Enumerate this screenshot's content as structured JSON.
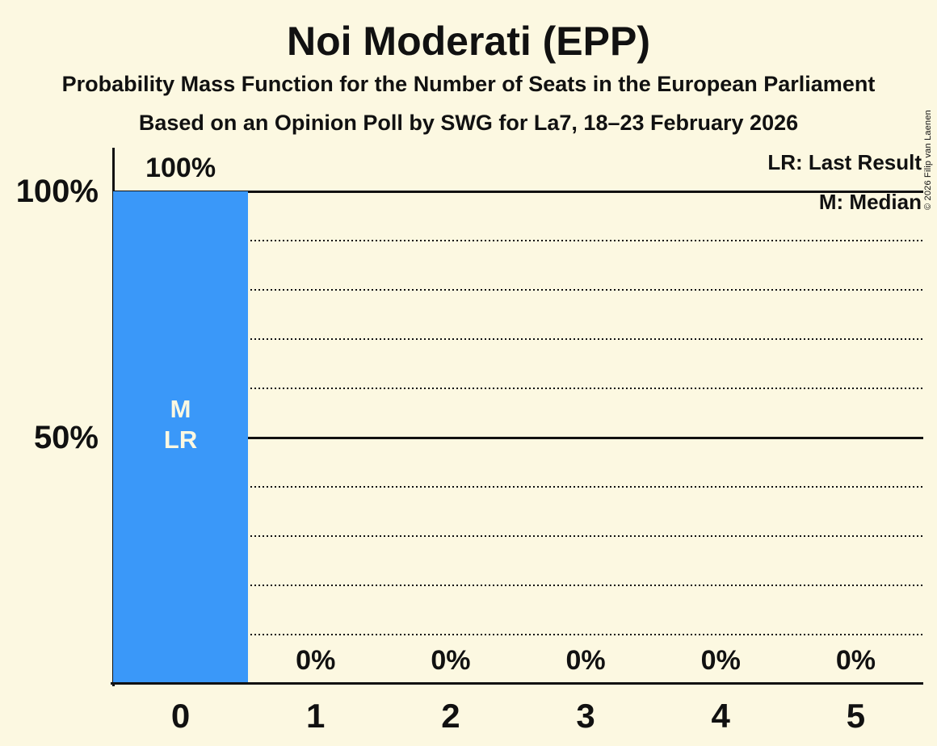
{
  "title": "Noi Moderati (EPP)",
  "subtitle": "Probability Mass Function for the Number of Seats in the European Parliament",
  "caption": "Based on an Opinion Poll by SWG for La7, 18–23 February 2026",
  "copyright": "© 2026 Filip van Laenen",
  "legend": {
    "lr": "LR: Last Result",
    "m": "M: Median"
  },
  "colors": {
    "background": "#FCF8E1",
    "bar": "#3A98F9",
    "ink": "#111111",
    "bar_label_text": "#FCF8E1"
  },
  "chart_data": {
    "type": "bar",
    "title": "Noi Moderati (EPP)",
    "subtitle": "Probability Mass Function for the Number of Seats in the European Parliament",
    "caption": "Based on an Opinion Poll by SWG for La7, 18–23 February 2026",
    "categories": [
      "0",
      "1",
      "2",
      "3",
      "4",
      "5"
    ],
    "values": [
      100,
      0,
      0,
      0,
      0,
      0
    ],
    "value_labels": [
      "100%",
      "0%",
      "0%",
      "0%",
      "0%",
      "0%"
    ],
    "xlabel": "",
    "ylabel": "",
    "ylim": [
      0,
      100
    ],
    "y_minor_ticks": [
      10,
      20,
      30,
      40,
      60,
      70,
      80,
      90
    ],
    "y_major_ticks": [
      50,
      100
    ],
    "y_tick_labels": [
      {
        "value": 100,
        "label": "100%"
      },
      {
        "value": 50,
        "label": "50%"
      }
    ],
    "grid": {
      "minor": "dotted",
      "major": "solid"
    },
    "legend_position": "top-right",
    "legend_entries": [
      "LR: Last Result",
      "M: Median"
    ],
    "annotations": [
      {
        "category": "0",
        "lines": [
          "M",
          "LR"
        ],
        "meaning": [
          "Median",
          "Last Result"
        ]
      }
    ],
    "bar_color": "#3A98F9"
  }
}
